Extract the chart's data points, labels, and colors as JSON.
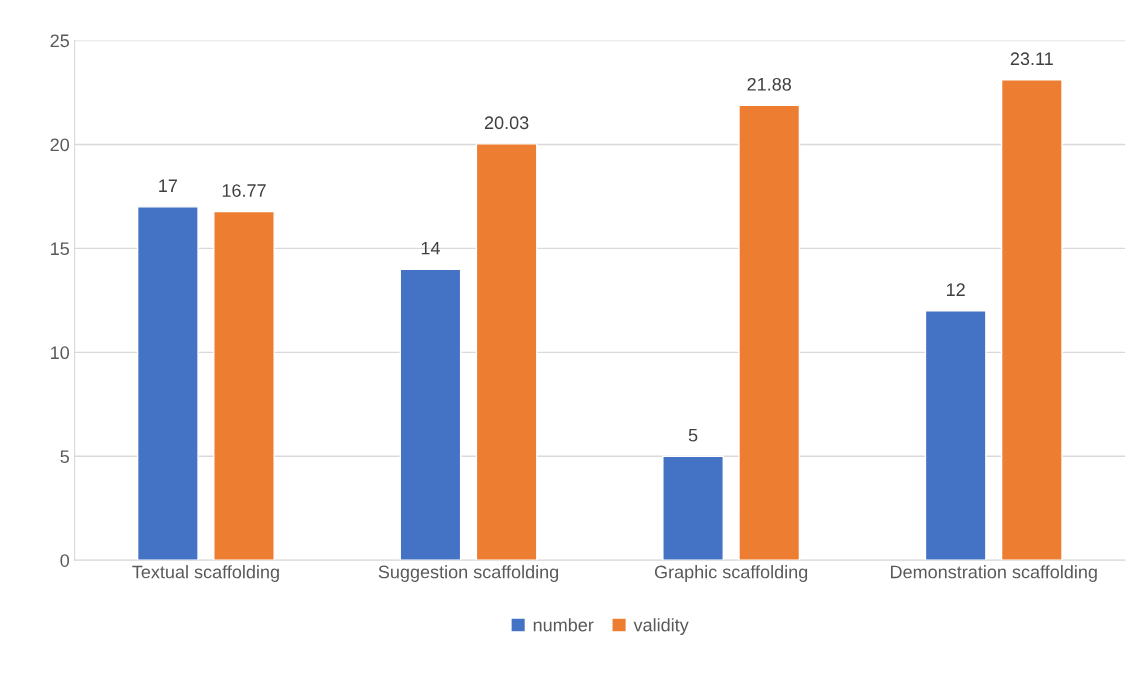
{
  "chart_data": {
    "type": "bar",
    "categories": [
      "Textual scaffolding",
      "Suggestion scaffolding",
      "Graphic scaffolding",
      "Demonstration scaffolding"
    ],
    "series": [
      {
        "name": "number",
        "color": "#4472c4",
        "values": [
          17,
          14,
          5,
          12
        ]
      },
      {
        "name": "validity",
        "color": "#ed7d31",
        "values": [
          16.77,
          20.03,
          21.88,
          23.11
        ]
      }
    ],
    "ylim": [
      0,
      25
    ],
    "yticks": [
      0,
      5,
      10,
      15,
      20,
      25
    ],
    "grid": "y",
    "legend": "bottom",
    "data_labels": true
  }
}
